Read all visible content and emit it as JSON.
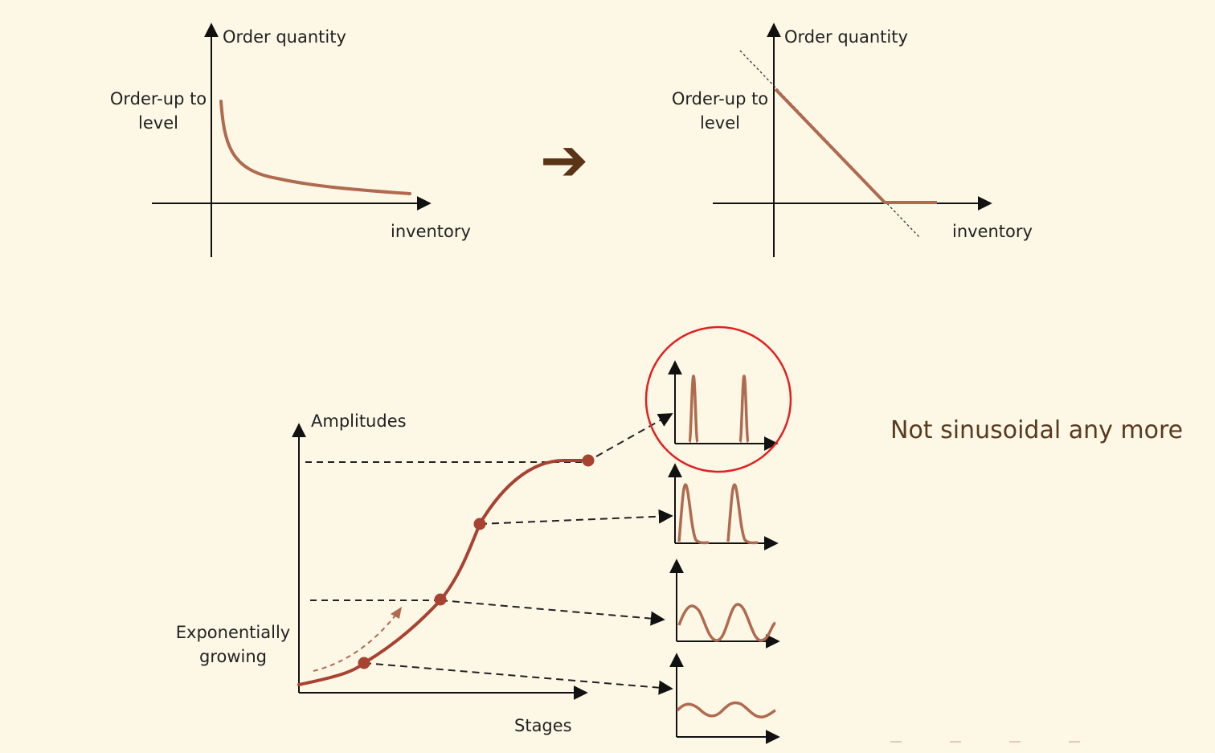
{
  "top_left": {
    "y_label": "Order quantity",
    "y_tick_line1": "Order-up to",
    "y_tick_line2": "level",
    "x_label": "inventory"
  },
  "top_right": {
    "y_label": "Order quantity",
    "y_tick_line1": "Order-up to",
    "y_tick_line2": "level",
    "x_label": "inventory"
  },
  "transition_arrow": "➔",
  "bottom": {
    "y_label": "Amplitudes",
    "x_label": "Stages",
    "annotation_line1": "Exponentially",
    "annotation_line2": "growing"
  },
  "side_note": "Not sinusoidal any more",
  "colors": {
    "curve": "#b06a4f",
    "point": "#a84332",
    "highlight_circle": "#e32020",
    "background": "#fdf7e6",
    "arrow": "#5a3414"
  },
  "icons": {
    "transition": "right-arrow-icon"
  }
}
